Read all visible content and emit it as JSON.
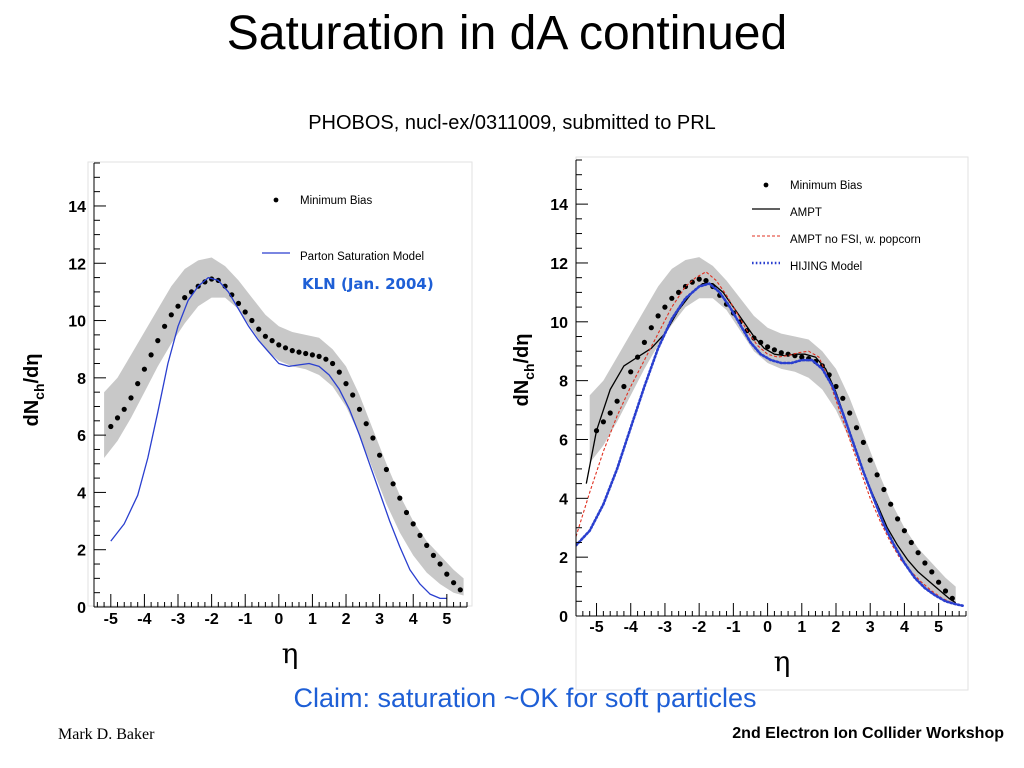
{
  "slide": {
    "title": "Saturation in dA continued",
    "subtitle": "PHOBOS, nucl-ex/0311009, submitted to PRL",
    "claim": "Claim: saturation ~OK for soft particles",
    "author": "Mark D. Baker",
    "workshop": "2nd Electron Ion Collider Workshop"
  },
  "chart_data": [
    {
      "type": "line",
      "xlabel": "η",
      "ylabel": "dNch/dη",
      "xlim": [
        -5.5,
        5.6
      ],
      "ylim": [
        0,
        15.5
      ],
      "xticks": [
        "-5",
        "-4",
        "-3",
        "-2",
        "-1",
        "0",
        "1",
        "2",
        "3",
        "4",
        "5"
      ],
      "yticks": [
        "0",
        "2",
        "4",
        "6",
        "8",
        "10",
        "12",
        "14"
      ],
      "annotation": "KLN (Jan. 2004)",
      "band": {
        "color": "#c8c8c8",
        "x": [
          -5.2,
          -4.8,
          -4.4,
          -4.0,
          -3.6,
          -3.2,
          -2.8,
          -2.4,
          -2.0,
          -1.6,
          -1.2,
          -0.8,
          -0.4,
          0.0,
          0.4,
          0.8,
          1.2,
          1.6,
          2.0,
          2.4,
          2.8,
          3.2,
          3.6,
          4.0,
          4.4,
          4.8,
          5.2,
          5.5
        ],
        "lo": [
          5.2,
          5.8,
          6.6,
          7.5,
          8.4,
          9.2,
          9.9,
          10.5,
          10.8,
          10.8,
          10.4,
          9.7,
          9.0,
          8.6,
          8.4,
          8.3,
          8.1,
          7.7,
          7.0,
          6.0,
          4.8,
          3.6,
          2.6,
          1.8,
          1.2,
          0.8,
          0.5,
          0.4
        ],
        "hi": [
          7.5,
          8.0,
          8.8,
          9.6,
          10.4,
          11.2,
          11.8,
          12.1,
          12.2,
          11.9,
          11.4,
          10.8,
          10.2,
          9.8,
          9.6,
          9.5,
          9.4,
          9.0,
          8.4,
          7.4,
          6.2,
          5.0,
          3.9,
          3.0,
          2.3,
          1.8,
          1.3,
          1.0
        ]
      },
      "series": [
        {
          "name": "Minimum Bias",
          "style": "dots",
          "color": "#000000",
          "x": [
            -5.0,
            -4.8,
            -4.6,
            -4.4,
            -4.2,
            -4.0,
            -3.8,
            -3.6,
            -3.4,
            -3.2,
            -3.0,
            -2.8,
            -2.6,
            -2.4,
            -2.2,
            -2.0,
            -1.8,
            -1.6,
            -1.4,
            -1.2,
            -1.0,
            -0.8,
            -0.6,
            -0.4,
            -0.2,
            0.0,
            0.2,
            0.4,
            0.6,
            0.8,
            1.0,
            1.2,
            1.4,
            1.6,
            1.8,
            2.0,
            2.2,
            2.4,
            2.6,
            2.8,
            3.0,
            3.2,
            3.4,
            3.6,
            3.8,
            4.0,
            4.2,
            4.4,
            4.6,
            4.8,
            5.0,
            5.2,
            5.4
          ],
          "y": [
            6.3,
            6.6,
            6.9,
            7.3,
            7.8,
            8.3,
            8.8,
            9.3,
            9.8,
            10.2,
            10.5,
            10.8,
            11.0,
            11.2,
            11.35,
            11.45,
            11.4,
            11.2,
            10.9,
            10.6,
            10.3,
            10.0,
            9.7,
            9.45,
            9.3,
            9.15,
            9.05,
            8.95,
            8.9,
            8.85,
            8.8,
            8.75,
            8.65,
            8.5,
            8.2,
            7.8,
            7.4,
            6.9,
            6.4,
            5.9,
            5.3,
            4.8,
            4.3,
            3.8,
            3.3,
            2.9,
            2.5,
            2.15,
            1.8,
            1.5,
            1.15,
            0.85,
            0.6
          ]
        },
        {
          "name": "Parton Saturation Model",
          "style": "solid",
          "color": "#2a3fcf",
          "x": [
            -5.0,
            -4.6,
            -4.2,
            -3.9,
            -3.6,
            -3.3,
            -3.0,
            -2.7,
            -2.4,
            -2.1,
            -1.8,
            -1.5,
            -1.2,
            -0.9,
            -0.6,
            -0.3,
            0.0,
            0.3,
            0.6,
            0.9,
            1.2,
            1.5,
            1.8,
            2.1,
            2.4,
            2.7,
            3.0,
            3.3,
            3.6,
            3.9,
            4.2,
            4.5,
            4.8,
            5.0
          ],
          "y": [
            2.3,
            2.9,
            3.9,
            5.2,
            6.8,
            8.5,
            9.8,
            10.7,
            11.2,
            11.5,
            11.4,
            11.0,
            10.4,
            9.8,
            9.3,
            8.9,
            8.5,
            8.4,
            8.45,
            8.5,
            8.4,
            8.1,
            7.6,
            6.9,
            6.0,
            5.0,
            4.0,
            3.0,
            2.1,
            1.3,
            0.8,
            0.45,
            0.3,
            0.3
          ]
        }
      ],
      "legend": [
        {
          "label": "Minimum Bias",
          "style": "dot",
          "color": "#000000"
        },
        {
          "label": "Parton Saturation Model",
          "style": "solid",
          "color": "#2a3fcf"
        }
      ]
    },
    {
      "type": "line",
      "xlabel": "η",
      "ylabel": "dNch/dη",
      "xlim": [
        -5.6,
        5.8
      ],
      "ylim": [
        0,
        15.5
      ],
      "xticks": [
        "-5",
        "-4",
        "-3",
        "-2",
        "-1",
        "0",
        "1",
        "2",
        "3",
        "4",
        "5"
      ],
      "yticks": [
        "0",
        "2",
        "4",
        "6",
        "8",
        "10",
        "12",
        "14"
      ],
      "band": {
        "color": "#c8c8c8",
        "x": [
          -5.2,
          -4.8,
          -4.4,
          -4.0,
          -3.6,
          -3.2,
          -2.8,
          -2.4,
          -2.0,
          -1.6,
          -1.2,
          -0.8,
          -0.4,
          0.0,
          0.4,
          0.8,
          1.2,
          1.6,
          2.0,
          2.4,
          2.8,
          3.2,
          3.6,
          4.0,
          4.4,
          4.8,
          5.2,
          5.5
        ],
        "lo": [
          5.2,
          5.8,
          6.6,
          7.5,
          8.4,
          9.2,
          9.9,
          10.5,
          10.8,
          10.8,
          10.4,
          9.7,
          9.0,
          8.6,
          8.4,
          8.3,
          8.1,
          7.7,
          7.0,
          6.0,
          4.8,
          3.6,
          2.6,
          1.8,
          1.2,
          0.8,
          0.5,
          0.4
        ],
        "hi": [
          7.5,
          8.0,
          8.8,
          9.6,
          10.4,
          11.2,
          11.8,
          12.1,
          12.2,
          11.9,
          11.4,
          10.8,
          10.2,
          9.8,
          9.6,
          9.5,
          9.4,
          9.0,
          8.4,
          7.4,
          6.2,
          5.0,
          3.9,
          3.0,
          2.3,
          1.8,
          1.3,
          1.0
        ]
      },
      "series": [
        {
          "name": "Minimum Bias",
          "style": "dots",
          "color": "#000000",
          "x": [
            -5.0,
            -4.8,
            -4.6,
            -4.4,
            -4.2,
            -4.0,
            -3.8,
            -3.6,
            -3.4,
            -3.2,
            -3.0,
            -2.8,
            -2.6,
            -2.4,
            -2.2,
            -2.0,
            -1.8,
            -1.6,
            -1.4,
            -1.2,
            -1.0,
            -0.8,
            -0.6,
            -0.4,
            -0.2,
            0.0,
            0.2,
            0.4,
            0.6,
            0.8,
            1.0,
            1.2,
            1.4,
            1.6,
            1.8,
            2.0,
            2.2,
            2.4,
            2.6,
            2.8,
            3.0,
            3.2,
            3.4,
            3.6,
            3.8,
            4.0,
            4.2,
            4.4,
            4.6,
            4.8,
            5.0,
            5.2,
            5.4
          ],
          "y": [
            6.3,
            6.6,
            6.9,
            7.3,
            7.8,
            8.3,
            8.8,
            9.3,
            9.8,
            10.2,
            10.5,
            10.8,
            11.0,
            11.2,
            11.35,
            11.45,
            11.4,
            11.2,
            10.9,
            10.6,
            10.3,
            10.0,
            9.7,
            9.45,
            9.3,
            9.15,
            9.05,
            8.95,
            8.9,
            8.85,
            8.8,
            8.75,
            8.65,
            8.5,
            8.2,
            7.8,
            7.4,
            6.9,
            6.4,
            5.9,
            5.3,
            4.8,
            4.3,
            3.8,
            3.3,
            2.9,
            2.5,
            2.15,
            1.8,
            1.5,
            1.15,
            0.85,
            0.6
          ]
        },
        {
          "name": "AMPT",
          "style": "solid",
          "color": "#000000",
          "x": [
            -5.3,
            -5.0,
            -4.6,
            -4.2,
            -3.8,
            -3.4,
            -3.0,
            -2.6,
            -2.2,
            -1.9,
            -1.6,
            -1.3,
            -1.0,
            -0.7,
            -0.4,
            -0.1,
            0.2,
            0.5,
            0.8,
            1.1,
            1.4,
            1.7,
            2.0,
            2.3,
            2.6,
            2.9,
            3.2,
            3.5,
            3.8,
            4.1,
            4.4,
            4.7,
            5.0,
            5.3,
            5.5
          ],
          "y": [
            4.5,
            6.3,
            7.7,
            8.5,
            8.8,
            9.1,
            9.6,
            10.4,
            11.0,
            11.3,
            11.3,
            11.0,
            10.5,
            10.0,
            9.5,
            9.1,
            8.9,
            8.85,
            8.9,
            8.9,
            8.8,
            8.4,
            7.6,
            6.6,
            5.6,
            4.6,
            3.8,
            3.0,
            2.4,
            1.9,
            1.5,
            1.2,
            0.9,
            0.6,
            0.45
          ]
        },
        {
          "name": "AMPT no FSI, w. popcorn",
          "style": "dashed-thin",
          "color": "#e03020",
          "x": [
            -5.6,
            -5.2,
            -4.8,
            -4.4,
            -4.0,
            -3.6,
            -3.2,
            -2.8,
            -2.4,
            -2.1,
            -1.8,
            -1.5,
            -1.2,
            -0.9,
            -0.6,
            -0.3,
            0.0,
            0.3,
            0.6,
            0.9,
            1.2,
            1.5,
            1.8,
            2.1,
            2.4,
            2.7,
            3.0,
            3.3,
            3.6,
            3.9,
            4.2,
            4.5,
            4.8,
            5.1,
            5.4,
            5.6
          ],
          "y": [
            2.7,
            4.2,
            5.6,
            6.8,
            7.8,
            8.7,
            9.6,
            10.5,
            11.2,
            11.5,
            11.7,
            11.4,
            10.9,
            10.3,
            9.7,
            9.2,
            8.9,
            8.8,
            8.85,
            8.95,
            9.0,
            8.8,
            8.0,
            7.0,
            6.0,
            5.0,
            4.0,
            3.2,
            2.5,
            1.9,
            1.5,
            1.15,
            0.85,
            0.6,
            0.45,
            0.4
          ]
        },
        {
          "name": "HIJING Model",
          "style": "dotted-thick",
          "color": "#2a3fcf",
          "x": [
            -5.6,
            -5.2,
            -4.8,
            -4.4,
            -4.0,
            -3.6,
            -3.2,
            -2.8,
            -2.4,
            -2.0,
            -1.7,
            -1.4,
            -1.1,
            -0.8,
            -0.5,
            -0.2,
            0.1,
            0.4,
            0.7,
            1.0,
            1.3,
            1.6,
            1.9,
            2.2,
            2.5,
            2.8,
            3.1,
            3.4,
            3.7,
            4.0,
            4.3,
            4.6,
            4.9,
            5.2,
            5.5,
            5.7
          ],
          "y": [
            2.4,
            2.9,
            3.8,
            5.0,
            6.4,
            7.8,
            9.1,
            10.1,
            10.8,
            11.2,
            11.3,
            11.0,
            10.5,
            9.9,
            9.3,
            8.9,
            8.7,
            8.6,
            8.6,
            8.7,
            8.7,
            8.4,
            7.8,
            6.9,
            5.9,
            4.9,
            4.0,
            3.1,
            2.4,
            1.8,
            1.3,
            0.95,
            0.7,
            0.5,
            0.4,
            0.35
          ]
        }
      ],
      "legend": [
        {
          "label": "Minimum Bias",
          "style": "dot",
          "color": "#000000"
        },
        {
          "label": "AMPT",
          "style": "solid",
          "color": "#000000"
        },
        {
          "label": "AMPT no FSI, w. popcorn",
          "style": "dashed-thin",
          "color": "#e03020"
        },
        {
          "label": "HIJING Model",
          "style": "dotted-thick",
          "color": "#2a3fcf"
        }
      ]
    }
  ]
}
